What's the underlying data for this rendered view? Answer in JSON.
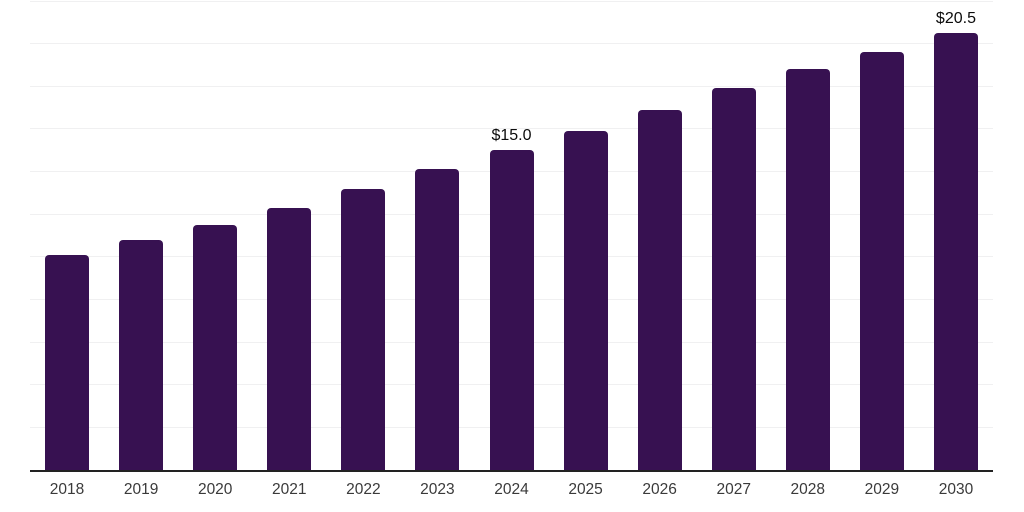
{
  "chart_data": {
    "type": "bar",
    "title": "",
    "xlabel": "",
    "ylabel": "",
    "categories": [
      "2018",
      "2019",
      "2020",
      "2021",
      "2022",
      "2023",
      "2024",
      "2025",
      "2026",
      "2027",
      "2028",
      "2029",
      "2030"
    ],
    "values": [
      10.1,
      10.8,
      11.5,
      12.3,
      13.2,
      14.1,
      15.0,
      15.9,
      16.9,
      17.9,
      18.8,
      19.6,
      20.5
    ],
    "data_labels": [
      "",
      "",
      "",
      "",
      "",
      "",
      "$15.0",
      "",
      "",
      "",
      "",
      "",
      "$20.5"
    ],
    "ylim": [
      0,
      22
    ],
    "gridline_step": 2,
    "grid": true,
    "y_tick_labels_visible": false,
    "legend_position": "none",
    "colors": {
      "bar": "#371151",
      "axis_line": "#222222",
      "gridline": "#f0f0f1",
      "tick_label": "#3a3a3a",
      "data_label": "#0c0c0c",
      "background": "#ffffff"
    }
  }
}
